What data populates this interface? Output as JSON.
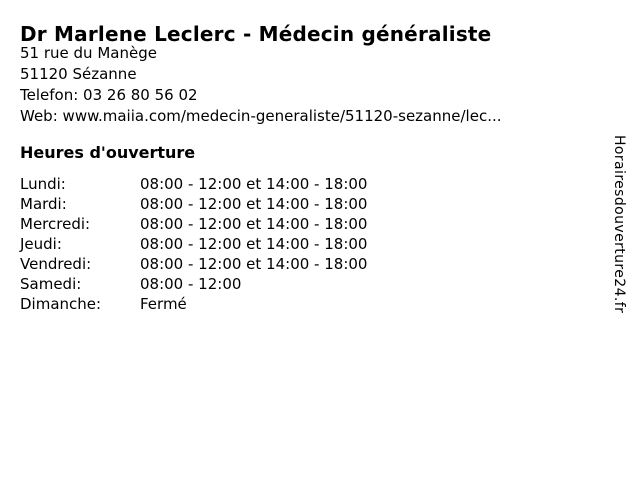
{
  "listing": {
    "title": "Dr Marlene Leclerc - Médecin généraliste",
    "address_line1": "51 rue du Manège",
    "address_line2": "51120 Sézanne",
    "phone_label": "Telefon:",
    "phone_value": "03 26 80 56 02",
    "web_label": "Web:",
    "web_value": "www.maiia.com/medecin-generaliste/51120-sezanne/lec..."
  },
  "hours": {
    "heading": "Heures d'ouverture",
    "rows": [
      {
        "day": "Lundi:",
        "time": "08:00 - 12:00 et 14:00 - 18:00"
      },
      {
        "day": "Mardi:",
        "time": "08:00 - 12:00 et 14:00 - 18:00"
      },
      {
        "day": "Mercredi:",
        "time": "08:00 - 12:00 et 14:00 - 18:00"
      },
      {
        "day": "Jeudi:",
        "time": "08:00 - 12:00 et 14:00 - 18:00"
      },
      {
        "day": "Vendredi:",
        "time": "08:00 - 12:00 et 14:00 - 18:00"
      },
      {
        "day": "Samedi:",
        "time": "08:00 - 12:00"
      },
      {
        "day": "Dimanche:",
        "time": "Fermé"
      }
    ]
  },
  "branding": {
    "watermark": "Horairesdouverture24.fr"
  },
  "colors": {
    "text": "#000000",
    "background": "#ffffff"
  }
}
